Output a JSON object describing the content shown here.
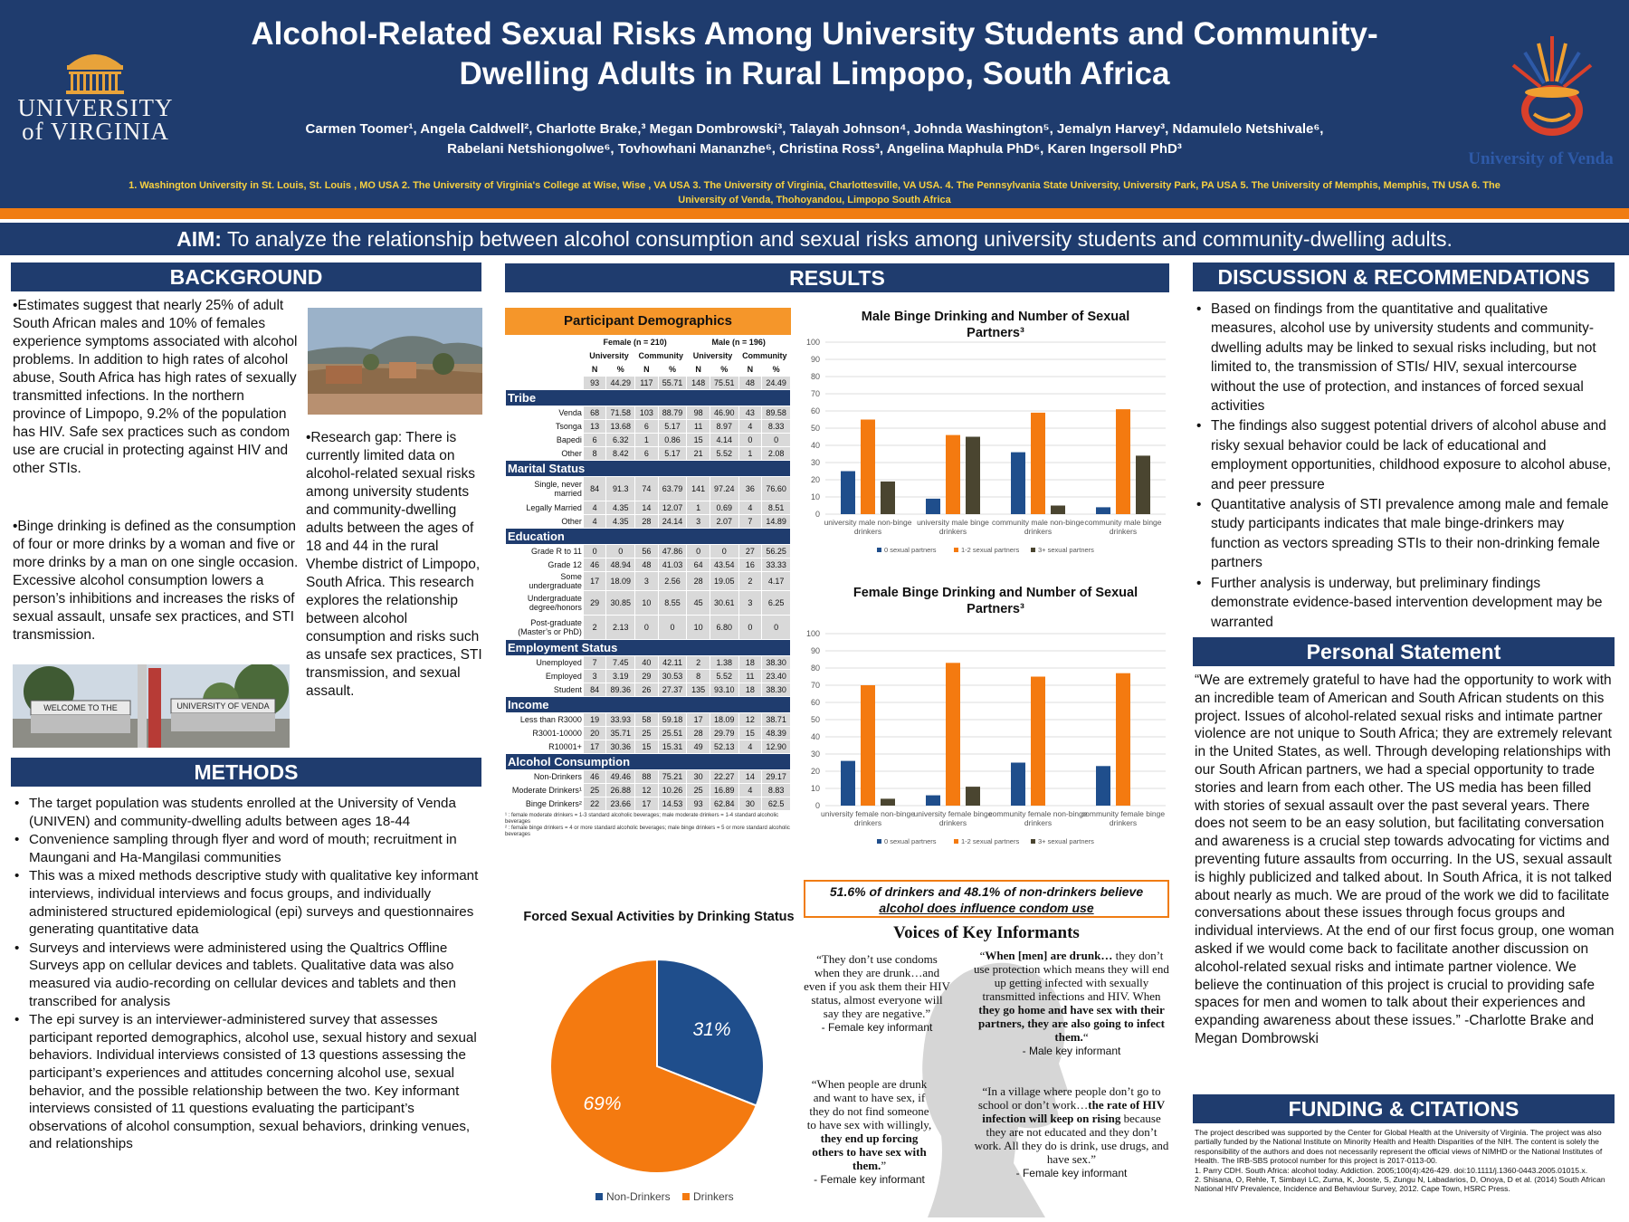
{
  "header": {
    "title_line1": "Alcohol-Related Sexual Risks Among University Students and Community-",
    "title_line2": "Dwelling Adults in Rural Limpopo, South Africa",
    "authors_line1": "Carmen Toomer¹, Angela Caldwell², Charlotte Brake,³ Megan Dombrowski³, Talayah Johnson⁴, Johnda Washington⁵, Jemalyn Harvey³, Ndamulelo Netshivale⁶,",
    "authors_line2": "Rabelani Netshiongolwe⁶, Tovhowhani Mananzhe⁶, Christina Ross³, Angelina Maphula PhD⁶, Karen Ingersoll PhD³",
    "affiliations": "1. Washington University in St. Louis, St. Louis , MO USA 2. The University of Virginia's College at Wise,  Wise , VA USA 3. The University of Virginia, Charlottesville, VA USA. 4. The Pennsylvania State University, University Park, PA USA 5. The University of Memphis, Memphis, TN USA 6. The University of Venda, Thohoyandou, Limpopo South Africa",
    "uva_logo_line1": "UNIVERSITY",
    "uva_logo_line2": "of VIRGINIA",
    "venda_logo_text": "University of Venda"
  },
  "aim": {
    "label": "AIM:",
    "text": " To analyze the relationship between alcohol consumption and sexual risks among university students and community-dwelling adults."
  },
  "background": {
    "heading": "BACKGROUND",
    "para1": "•Estimates suggest that nearly 25% of adult South African males and 10% of females experience symptoms associated with  alcohol problems. In addition to high rates of alcohol abuse, South Africa has high rates of sexually transmitted infections. In the northern province of Limpopo, 9.2% of the population has HIV. Safe sex practices such as condom use are crucial in protecting against HIV and other STIs.",
    "para2": "•Binge drinking is defined as the consumption of four or more drinks by a woman and five or more drinks by a man on one single occasion. Excessive alcohol consumption lowers a person’s inhibitions and increases the risks of sexual assault, unsafe sex practices, and STI transmission.",
    "para3": "•Research gap: There is currently limited data on alcohol-related sexual risks among university students and community-dwelling adults between the ages of 18 and 44 in the rural Vhembe district of Limpopo, South Africa. This research explores the relationship between alcohol consumption and risks such as unsafe sex practices, STI transmission, and sexual assault.",
    "sign_text_left": "WELCOME TO THE",
    "sign_text_right": "UNIVERSITY OF VENDA"
  },
  "methods": {
    "heading": "METHODS",
    "items": [
      "The target population was students enrolled at the University of Venda (UNIVEN) and community-dwelling adults between ages 18-44",
      "Convenience sampling through flyer and word of mouth; recruitment in Maungani and Ha-Mangilasi communities",
      "This was a mixed methods descriptive study with qualitative key informant interviews, individual interviews and focus groups, and individually administered structured epidemiological (epi) surveys and questionnaires generating quantitative data",
      "Surveys and interviews were administered using the Qualtrics Offline Surveys app on cellular devices and tablets. Qualitative data was also measured via audio-recording on cellular devices and tablets and then transcribed for analysis",
      "The epi survey is an interviewer-administered survey that assesses participant reported demographics, alcohol use, sexual history and sexual behaviors. Individual interviews consisted of 13 questions assessing the participant’s experiences and attitudes concerning alcohol use, sexual behavior, and the possible relationship between the two. Key informant interviews consisted of 11 questions evaluating the participant’s observations of alcohol consumption, sexual behaviors, drinking venues, and relationships"
    ]
  },
  "results": {
    "heading": "RESULTS",
    "demographics": {
      "title": "Participant Demographics",
      "female_header": "Female (n = 210)",
      "male_header": "Male (n = 196)",
      "sub_univ": "University",
      "sub_comm": "Community",
      "n": "N",
      "pct": "%",
      "totals": [
        "93",
        "44.29",
        "117",
        "55.71",
        "148",
        "75.51",
        "48",
        "24.49"
      ],
      "sections": [
        {
          "name": "Tribe",
          "rows": [
            {
              "label": "Venda",
              "vals": [
                "68",
                "71.58",
                "103",
                "88.79",
                "98",
                "46.90",
                "43",
                "89.58"
              ]
            },
            {
              "label": "Tsonga",
              "vals": [
                "13",
                "13.68",
                "6",
                "5.17",
                "11",
                "8.97",
                "4",
                "8.33"
              ]
            },
            {
              "label": "Bapedi",
              "vals": [
                "6",
                "6.32",
                "1",
                "0.86",
                "15",
                "4.14",
                "0",
                "0"
              ]
            },
            {
              "label": "Other",
              "vals": [
                "8",
                "8.42",
                "6",
                "5.17",
                "21",
                "5.52",
                "1",
                "2.08"
              ]
            }
          ]
        },
        {
          "name": "Marital Status",
          "rows": [
            {
              "label": "Single, never married",
              "vals": [
                "84",
                "91.3",
                "74",
                "63.79",
                "141",
                "97.24",
                "36",
                "76.60"
              ],
              "tall": true
            },
            {
              "label": "Legally Married",
              "vals": [
                "4",
                "4.35",
                "14",
                "12.07",
                "1",
                "0.69",
                "4",
                "8.51"
              ]
            },
            {
              "label": "Other",
              "vals": [
                "4",
                "4.35",
                "28",
                "24.14",
                "3",
                "2.07",
                "7",
                "14.89"
              ]
            }
          ]
        },
        {
          "name": "Education",
          "rows": [
            {
              "label": "Grade R to 11",
              "vals": [
                "0",
                "0",
                "56",
                "47.86",
                "0",
                "0",
                "27",
                "56.25"
              ]
            },
            {
              "label": "Grade 12",
              "vals": [
                "46",
                "48.94",
                "48",
                "41.03",
                "64",
                "43.54",
                "16",
                "33.33"
              ]
            },
            {
              "label": "Some undergraduate",
              "vals": [
                "17",
                "18.09",
                "3",
                "2.56",
                "28",
                "19.05",
                "2",
                "4.17"
              ]
            },
            {
              "label": "Undergraduate degree/honors",
              "vals": [
                "29",
                "30.85",
                "10",
                "8.55",
                "45",
                "30.61",
                "3",
                "6.25"
              ],
              "tall": true
            },
            {
              "label": "Post-graduate (Master’s or PhD)",
              "vals": [
                "2",
                "2.13",
                "0",
                "0",
                "10",
                "6.80",
                "0",
                "0"
              ],
              "tall": true
            }
          ]
        },
        {
          "name": "Employment Status",
          "rows": [
            {
              "label": "Unemployed",
              "vals": [
                "7",
                "7.45",
                "40",
                "42.11",
                "2",
                "1.38",
                "18",
                "38.30"
              ]
            },
            {
              "label": "Employed",
              "vals": [
                "3",
                "3.19",
                "29",
                "30.53",
                "8",
                "5.52",
                "11",
                "23.40"
              ]
            },
            {
              "label": "Student",
              "vals": [
                "84",
                "89.36",
                "26",
                "27.37",
                "135",
                "93.10",
                "18",
                "38.30"
              ]
            }
          ]
        },
        {
          "name": "Income",
          "rows": [
            {
              "label": "Less than R3000",
              "vals": [
                "19",
                "33.93",
                "58",
                "59.18",
                "17",
                "18.09",
                "12",
                "38.71"
              ]
            },
            {
              "label": "R3001-10000",
              "vals": [
                "20",
                "35.71",
                "25",
                "25.51",
                "28",
                "29.79",
                "15",
                "48.39"
              ]
            },
            {
              "label": "R10001+",
              "vals": [
                "17",
                "30.36",
                "15",
                "15.31",
                "49",
                "52.13",
                "4",
                "12.90"
              ]
            }
          ]
        },
        {
          "name": "Alcohol Consumption",
          "rows": [
            {
              "label": "Non-Drinkers",
              "vals": [
                "46",
                "49.46",
                "88",
                "75.21",
                "30",
                "22.27",
                "14",
                "29.17"
              ]
            },
            {
              "label": "Moderate Drinkers¹",
              "vals": [
                "25",
                "26.88",
                "12",
                "10.26",
                "25",
                "16.89",
                "4",
                "8.83"
              ]
            },
            {
              "label": "Binge Drinkers²",
              "vals": [
                "22",
                "23.66",
                "17",
                "14.53",
                "93",
                "62.84",
                "30",
                "62.5"
              ]
            }
          ]
        }
      ],
      "footnote1": "¹ : female moderate drinkers = 1-3 standard alcoholic beverages; male moderate drinkers = 1-4 standard alcoholic beverages",
      "footnote2": "² : female binge drinkers = 4 or more standard alcoholic beverages; male binge drinkers = 5 or more standard alcoholic beverages"
    },
    "insight_line1": "51.6% of drinkers and 48.1% of non-drinkers believe",
    "insight_line2": "alcohol does influence condom use",
    "voices_title": "Voices of Key Informants",
    "quotes": [
      {
        "text": "“They don’t use condoms when they are drunk…and even if you ask them their HIV status, almost everyone will say they are negative.”",
        "attr": "- Female key informant"
      },
      {
        "pre": "“",
        "bold1": "When [men] are drunk…",
        "mid": " they don’t use protection which means they will end up getting infected with sexually transmitted infections and HIV. When ",
        "bold2": "they go home and have sex with their partners, they are also going to infect them.",
        "post": "“",
        "attr": "- Male key informant"
      },
      {
        "pre": "“When people are drunk and want to have sex, if they do not find someone to have sex with willingly, ",
        "bold1": "they end up forcing others to have sex with them.",
        "post": "”",
        "attr": "- Female key informant"
      },
      {
        "pre": "“In a village where people don’t go to school or don’t work…",
        "bold1": "the rate of HIV infection will keep on rising",
        "post": " because they are not educated and they don’t work. All they do is drink, use drugs, and have sex.”",
        "attr": "- Female key informant"
      }
    ]
  },
  "discussion": {
    "heading": "DISCUSSION & RECOMMENDATIONS",
    "items": [
      "Based on findings from the quantitative and qualitative measures, alcohol use by university students and community-dwelling adults may be linked to sexual risks including, but not limited to, the transmission of STIs/ HIV, sexual intercourse without the use of protection, and instances of forced sexual activities",
      "The findings also suggest potential drivers of alcohol abuse and risky sexual behavior could be lack of educational and employment opportunities, childhood exposure to alcohol abuse, and peer pressure",
      "Quantitative analysis of STI prevalence among male and female study participants indicates that male binge-drinkers may function as vectors spreading STIs to their non-drinking female partners",
      "Further analysis is underway, but preliminary findings demonstrate evidence-based intervention development may be warranted"
    ]
  },
  "personal": {
    "heading": "Personal Statement",
    "text": "“We are extremely grateful to have had the opportunity to work with an incredible team of American and South African students on this project. Issues of alcohol-related sexual risks and intimate partner violence are not unique to South Africa; they are extremely relevant in the United States, as well. Through developing relationships with our South African partners, we had a special opportunity to trade stories and learn from each other.  The US media has been filled with stories of sexual assault over the past several years. There does not seem to be an easy solution, but facilitating conversation and awareness is a crucial step towards advocating for victims and preventing future assaults from occurring. In the US, sexual assault is highly publicized and talked about. In South Africa, it is not talked about nearly as much. We are proud of the work we did to facilitate conversations about these issues through focus groups and individual interviews. At the end of our first focus group, one woman asked if we would come back to facilitate another discussion on alcohol-related sexual risks and intimate partner violence. We believe the continuation of this project is crucial to providing safe spaces for men and women to talk about their experiences and expanding awareness about these issues.” -Charlotte Brake and Megan Dombrowski"
  },
  "funding": {
    "heading": "FUNDING & CITATIONS",
    "text": "The project described was supported by the Center for Global Health at the University of Virginia. The project was also partially funded by the National Institute on Minority Health and Health Disparities of the NIH. The content is solely the responsibility of the authors and does not necessarily represent the official views of NIMHD or the National Institutes of Health. The IRB-SBS protocol number for this project is 2017-0113-00.",
    "cite1": "1. Parry CDH. South Africa: alcohol today. Addiction. 2005;100(4):426-429. doi:10.1111/j.1360-0443.2005.01015.x.",
    "cite2": "2. Shisana, O, Rehle, T, Simbayi LC, Zuma, K,  Jooste, S, Zungu N, Labadarios, D, Onoya, D  et al. (2014) South African National HIV Prevalence, Incidence and Behaviour Survey, 2012. Cape Town, HSRC Press."
  },
  "colors": {
    "navy": "#1f3c6e",
    "orange": "#f07c12",
    "bar_blue": "#1f4e8c",
    "bar_orange": "#f47a10",
    "bar_dark": "#4a4530"
  },
  "chart_data": [
    {
      "type": "bar",
      "title": "Male Binge Drinking and Number of Sexual Partners³",
      "categories": [
        "university male non-binge drinkers",
        "university male binge drinkers",
        "community male non-binge drinkers",
        "community male binge drinkers"
      ],
      "series": [
        {
          "name": "0 sexual partners",
          "values": [
            25,
            9,
            36,
            4
          ]
        },
        {
          "name": "1-2 sexual partners",
          "values": [
            55,
            46,
            59,
            61
          ]
        },
        {
          "name": "3+ sexual partners",
          "values": [
            19,
            45,
            5,
            34
          ]
        }
      ],
      "ylim": [
        0,
        100
      ],
      "yticks": [
        0,
        10,
        20,
        30,
        40,
        50,
        60,
        70,
        80,
        90,
        100
      ],
      "grid": true,
      "legend": "bottom"
    },
    {
      "type": "bar",
      "title": "Female Binge Drinking and Number of Sexual Partners³",
      "categories": [
        "university female non-binge drinkers",
        "university female binge drinkers",
        "community female non-binge drinkers",
        "community female binge drinkers"
      ],
      "series": [
        {
          "name": "0 sexual partners",
          "values": [
            26,
            6,
            25,
            23
          ]
        },
        {
          "name": "1-2 sexual partners",
          "values": [
            70,
            83,
            75,
            77
          ]
        },
        {
          "name": "3+ sexual partners",
          "values": [
            4,
            11,
            0,
            0
          ]
        }
      ],
      "ylim": [
        0,
        100
      ],
      "yticks": [
        0,
        10,
        20,
        30,
        40,
        50,
        60,
        70,
        80,
        90,
        100
      ],
      "grid": true,
      "legend": "bottom"
    },
    {
      "type": "pie",
      "title": "Forced Sexual Activities by Drinking Status",
      "labels": [
        "Non-Drinkers",
        "Drinkers"
      ],
      "values": [
        31,
        69
      ],
      "data_labels": [
        "31%",
        "69%"
      ],
      "legend": "bottom"
    }
  ]
}
